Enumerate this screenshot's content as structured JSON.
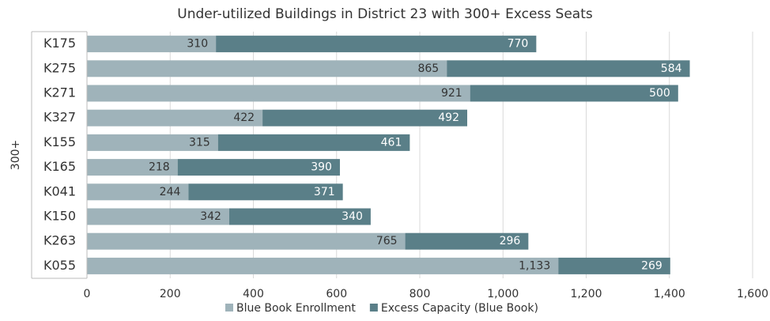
{
  "chart_data": {
    "type": "stacked_barh",
    "title": "Under-utilized Buildings in District 23 with 300+ Excess Seats",
    "group_label": "300+",
    "categories": [
      "K175",
      "K275",
      "K271",
      "K327",
      "K155",
      "K165",
      "K041",
      "K150",
      "K263",
      "K055"
    ],
    "series": [
      {
        "name": "Blue Book Enrollment",
        "color": "#9fb3ba",
        "label_color": "#333333",
        "values": [
          310,
          865,
          921,
          422,
          315,
          218,
          244,
          342,
          765,
          1133
        ],
        "value_labels": [
          "310",
          "865",
          "921",
          "422",
          "315",
          "218",
          "244",
          "342",
          "765",
          "1,133"
        ]
      },
      {
        "name": "Excess Capacity (Blue Book)",
        "color": "#5a7f88",
        "label_color": "#ffffff",
        "values": [
          770,
          584,
          500,
          492,
          461,
          390,
          371,
          340,
          296,
          269
        ]
      }
    ],
    "xlim": [
      0,
      1600
    ],
    "xticks": [
      0,
      200,
      400,
      600,
      800,
      {
        "value": 1000,
        "label": "1,000"
      },
      {
        "value": 1200,
        "label": "1,200"
      },
      {
        "value": 1400,
        "label": "1,400"
      },
      {
        "value": 1600,
        "label": "1,600"
      }
    ],
    "grid": true,
    "legend": "bottom"
  }
}
